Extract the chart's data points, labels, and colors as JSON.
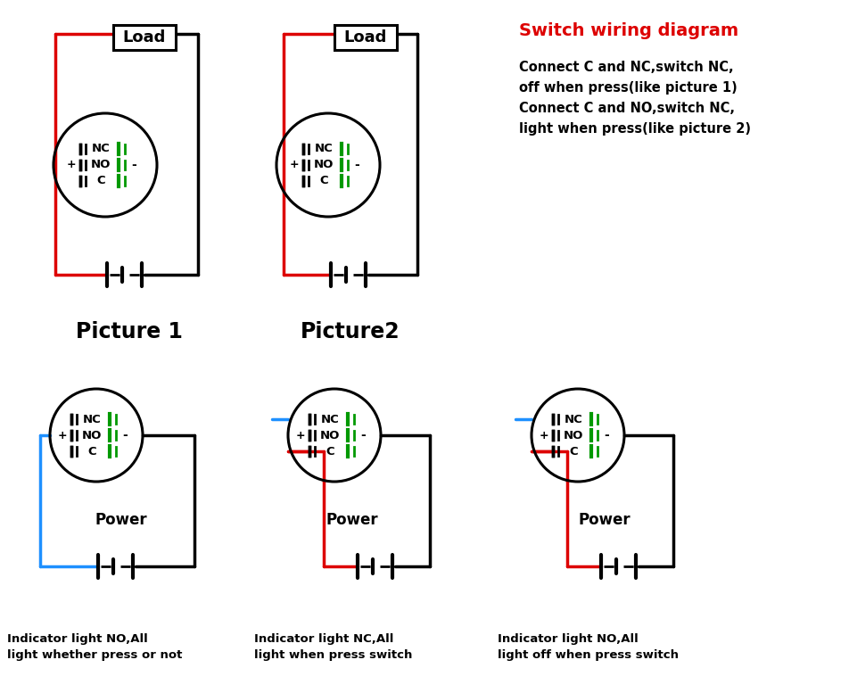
{
  "bg_color": "#ffffff",
  "title_color": "#ff0000",
  "title_text": "Switch wiring diagram",
  "desc_line1": "Connect C and NC,switch NC,",
  "desc_line2": "off when press(like picture 1)",
  "desc_line3": "Connect C and NO,switch NC,",
  "desc_line4": "light when press(like picture 2)",
  "pic1_label": "Picture 1",
  "pic2_label": "Picture2",
  "pic3_label": "Indicator light NO,All",
  "pic3_label2": "light whether press or not",
  "pic4_label": "Indicator light NC,All",
  "pic4_label2": "light when press switch",
  "pic5_label": "Indicator light NO,All",
  "pic5_label2": "light off when press switch",
  "power_label": "Power",
  "load_label": "Load",
  "red": "#dd0000",
  "black": "#000000",
  "blue": "#1e90ff",
  "green": "#009900",
  "teal": "#008888"
}
